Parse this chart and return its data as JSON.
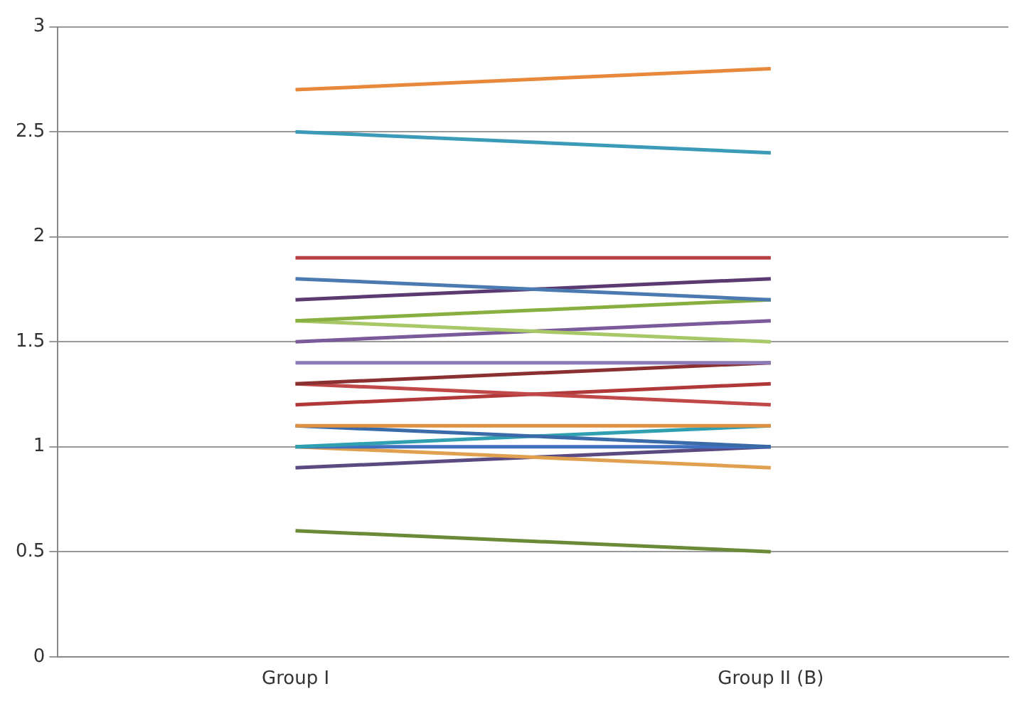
{
  "chart_data": {
    "type": "line",
    "categories": [
      "Group I",
      "Group II (B)"
    ],
    "series": [
      {
        "color": "#e8883a",
        "values": [
          2.7,
          2.8
        ]
      },
      {
        "color": "#3a9ab8",
        "values": [
          2.5,
          2.4
        ]
      },
      {
        "color": "#b84040",
        "values": [
          1.9,
          1.9
        ]
      },
      {
        "color": "#4a7ab0",
        "values": [
          1.8,
          1.7
        ]
      },
      {
        "color": "#5a3a70",
        "values": [
          1.7,
          1.8
        ]
      },
      {
        "color": "#88b040",
        "values": [
          1.6,
          1.7
        ]
      },
      {
        "color": "#a8c868",
        "values": [
          1.6,
          1.5
        ]
      },
      {
        "color": "#7a5a98",
        "values": [
          1.5,
          1.6
        ]
      },
      {
        "color": "#8a7ab8",
        "values": [
          1.4,
          1.4
        ]
      },
      {
        "color": "#8a3030",
        "values": [
          1.3,
          1.4
        ]
      },
      {
        "color": "#c04848",
        "values": [
          1.3,
          1.2
        ]
      },
      {
        "color": "#b03838",
        "values": [
          1.2,
          1.3
        ]
      },
      {
        "color": "#e09040",
        "values": [
          1.1,
          1.1
        ]
      },
      {
        "color": "#3a6aa8",
        "values": [
          1.1,
          1.0
        ]
      },
      {
        "color": "#30a0b0",
        "values": [
          1.0,
          1.1
        ]
      },
      {
        "color": "#4070c0",
        "values": [
          1.0,
          1.0
        ]
      },
      {
        "color": "#e0a050",
        "values": [
          1.0,
          0.9
        ]
      },
      {
        "color": "#5a4a80",
        "values": [
          0.9,
          1.0
        ]
      },
      {
        "color": "#6a8a38",
        "values": [
          0.6,
          0.5
        ]
      }
    ],
    "ylim": [
      0,
      3
    ],
    "yticks": [
      0,
      0.5,
      1,
      1.5,
      2,
      2.5,
      3
    ],
    "grid": "y",
    "legend": false,
    "marker": "none",
    "line_style": "solid"
  }
}
